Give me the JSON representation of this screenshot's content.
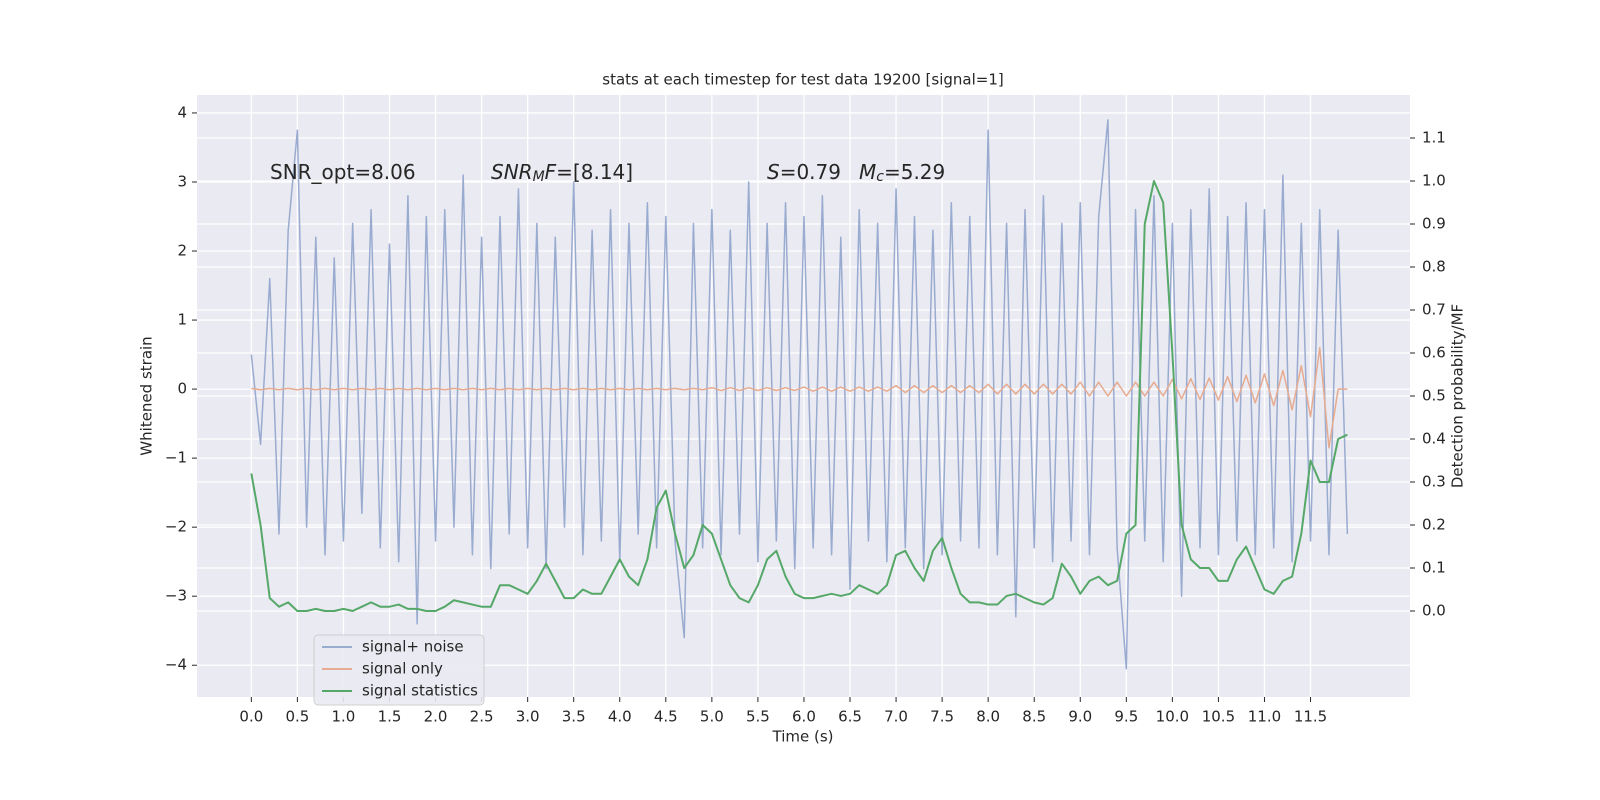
{
  "chart_data": {
    "type": "line",
    "title": "stats at each timestep for test data 19200 [signal=1]",
    "xlabel": "Time (s)",
    "ylabel": "Whitened strain",
    "y2label": "Detection probability/MF",
    "annotations": [
      [
        {
          "text": "SNR_opt=8.06"
        }
      ],
      [
        {
          "text": "SNR",
          "italic": true
        },
        {
          "text": "M",
          "italic": true,
          "sub": true
        },
        {
          "text": "F",
          "italic": true
        },
        {
          "text": "=[8.14]"
        }
      ],
      [
        {
          "text": "S",
          "italic": true
        },
        {
          "text": "=0.79"
        }
      ],
      [
        {
          "text": "M",
          "italic": true
        },
        {
          "text": "c",
          "italic": true,
          "sub": true
        },
        {
          "text": "=5.29"
        }
      ]
    ],
    "x": [
      0.0,
      0.1,
      0.2,
      0.3,
      0.4,
      0.5,
      0.6,
      0.7,
      0.8,
      0.9,
      1.0,
      1.1,
      1.2,
      1.3,
      1.4,
      1.5,
      1.6,
      1.7,
      1.8,
      1.9,
      2.0,
      2.1,
      2.2,
      2.3,
      2.4,
      2.5,
      2.6,
      2.7,
      2.8,
      2.9,
      3.0,
      3.1,
      3.2,
      3.3,
      3.4,
      3.5,
      3.6,
      3.7,
      3.8,
      3.9,
      4.0,
      4.1,
      4.2,
      4.3,
      4.4,
      4.5,
      4.6,
      4.7,
      4.8,
      4.9,
      5.0,
      5.1,
      5.2,
      5.3,
      5.4,
      5.5,
      5.6,
      5.7,
      5.8,
      5.9,
      6.0,
      6.1,
      6.2,
      6.3,
      6.4,
      6.5,
      6.6,
      6.7,
      6.8,
      6.9,
      7.0,
      7.1,
      7.2,
      7.3,
      7.4,
      7.5,
      7.6,
      7.7,
      7.8,
      7.9,
      8.0,
      8.1,
      8.2,
      8.3,
      8.4,
      8.5,
      8.6,
      8.7,
      8.8,
      8.9,
      9.0,
      9.1,
      9.2,
      9.3,
      9.4,
      9.5,
      9.6,
      9.7,
      9.8,
      9.9,
      10.0,
      10.1,
      10.2,
      10.3,
      10.4,
      10.5,
      10.6,
      10.7,
      10.8,
      10.9,
      11.0,
      11.1,
      11.2,
      11.3,
      11.4,
      11.5,
      11.6,
      11.7,
      11.8,
      11.9
    ],
    "series": [
      {
        "name": "signal+ noise",
        "color": "#9aabd0",
        "values": [
          0.5,
          -0.8,
          1.6,
          -2.1,
          2.3,
          3.75,
          -2.0,
          2.2,
          -2.4,
          1.9,
          -2.2,
          2.4,
          -1.8,
          2.6,
          -2.3,
          2.1,
          -2.5,
          2.8,
          -3.4,
          2.5,
          -2.2,
          2.6,
          -2.0,
          3.1,
          -2.4,
          2.2,
          -2.6,
          2.5,
          -2.1,
          2.9,
          -2.3,
          2.4,
          -2.6,
          2.2,
          -2.0,
          3.0,
          -2.4,
          2.3,
          -2.2,
          2.6,
          -2.5,
          2.4,
          -2.1,
          2.7,
          -2.3,
          2.5,
          -2.2,
          -3.6,
          2.4,
          -2.3,
          2.6,
          -2.4,
          2.3,
          -2.1,
          3.0,
          -2.5,
          2.4,
          -2.2,
          2.7,
          -2.6,
          2.5,
          -2.3,
          2.8,
          -2.4,
          2.2,
          -2.9,
          2.6,
          -2.2,
          2.4,
          -2.5,
          2.9,
          -2.3,
          2.5,
          -2.6,
          2.3,
          -2.4,
          2.7,
          -2.2,
          2.5,
          -2.3,
          3.75,
          -2.4,
          2.4,
          -3.3,
          2.6,
          -2.3,
          2.8,
          -2.5,
          2.4,
          -2.2,
          2.7,
          -2.4,
          2.5,
          3.9,
          -2.3,
          -4.05,
          2.6,
          -2.2,
          2.8,
          -2.5,
          2.4,
          -3.0,
          2.6,
          -2.3,
          2.9,
          -2.4,
          2.5,
          -2.2,
          2.7,
          -2.4,
          2.6,
          -2.3,
          3.1,
          -2.5,
          2.4,
          -2.2,
          2.6,
          -2.4,
          2.3,
          -2.1
        ]
      },
      {
        "name": "signal only",
        "color": "#e6ab90",
        "values": [
          0.01,
          -0.01,
          0.01,
          -0.01,
          0.01,
          -0.01,
          0.01,
          -0.01,
          0.01,
          -0.01,
          0.01,
          -0.01,
          0.01,
          -0.01,
          0.01,
          -0.01,
          0.01,
          -0.01,
          0.01,
          -0.01,
          0.01,
          -0.01,
          0.01,
          -0.01,
          0.01,
          -0.01,
          0.01,
          -0.01,
          0.01,
          -0.01,
          0.01,
          -0.01,
          0.01,
          -0.01,
          0.01,
          -0.01,
          0.01,
          -0.01,
          0.01,
          -0.01,
          0.01,
          -0.01,
          0.01,
          -0.01,
          0.01,
          -0.01,
          0.01,
          -0.01,
          0.01,
          -0.01,
          0.02,
          -0.02,
          0.02,
          -0.02,
          0.02,
          -0.02,
          0.02,
          -0.02,
          0.02,
          -0.02,
          0.03,
          -0.03,
          0.03,
          -0.03,
          0.03,
          -0.03,
          0.03,
          -0.03,
          0.03,
          -0.03,
          0.05,
          -0.05,
          0.05,
          -0.05,
          0.05,
          -0.05,
          0.05,
          -0.05,
          0.05,
          -0.05,
          0.07,
          -0.07,
          0.07,
          -0.07,
          0.07,
          -0.07,
          0.07,
          -0.07,
          0.07,
          -0.07,
          0.1,
          -0.1,
          0.1,
          -0.1,
          0.1,
          -0.1,
          0.1,
          -0.1,
          0.1,
          -0.1,
          0.14,
          -0.14,
          0.15,
          -0.15,
          0.16,
          -0.16,
          0.18,
          -0.18,
          0.2,
          -0.2,
          0.22,
          -0.24,
          0.27,
          -0.3,
          0.34,
          -0.4,
          0.6,
          -0.85,
          0,
          0
        ]
      },
      {
        "name": "signal statistics",
        "color": "#55a868",
        "axis": "y2",
        "values": [
          0.32,
          0.2,
          0.03,
          0.01,
          0.02,
          0.0,
          0.0,
          0.005,
          0.0,
          0.0,
          0.005,
          0.0,
          0.01,
          0.02,
          0.01,
          0.01,
          0.015,
          0.005,
          0.005,
          0.0,
          0.0,
          0.01,
          0.025,
          0.02,
          0.015,
          0.01,
          0.01,
          0.06,
          0.06,
          0.05,
          0.04,
          0.07,
          0.11,
          0.07,
          0.03,
          0.03,
          0.05,
          0.04,
          0.04,
          0.08,
          0.12,
          0.08,
          0.06,
          0.12,
          0.24,
          0.28,
          0.18,
          0.1,
          0.13,
          0.2,
          0.18,
          0.12,
          0.06,
          0.03,
          0.02,
          0.06,
          0.12,
          0.14,
          0.08,
          0.04,
          0.03,
          0.03,
          0.035,
          0.04,
          0.035,
          0.04,
          0.06,
          0.05,
          0.04,
          0.06,
          0.13,
          0.14,
          0.1,
          0.07,
          0.14,
          0.17,
          0.1,
          0.04,
          0.02,
          0.02,
          0.015,
          0.015,
          0.035,
          0.04,
          0.03,
          0.02,
          0.015,
          0.03,
          0.11,
          0.08,
          0.04,
          0.07,
          0.08,
          0.06,
          0.07,
          0.18,
          0.2,
          0.9,
          1.0,
          0.95,
          0.6,
          0.2,
          0.12,
          0.1,
          0.1,
          0.07,
          0.07,
          0.12,
          0.15,
          0.1,
          0.05,
          0.04,
          0.07,
          0.08,
          0.18,
          0.35,
          0.3,
          0.3,
          0.4,
          0.41
        ]
      }
    ],
    "xlim": [
      -0.59,
      12.58
    ],
    "xticks": [
      {
        "value": 0,
        "label": "0.0"
      },
      0.5,
      {
        "value": 1,
        "label": "1.0"
      },
      1.5,
      {
        "value": 2,
        "label": "2.0"
      },
      2.5,
      {
        "value": 3,
        "label": "3.0"
      },
      3.5,
      {
        "value": 4,
        "label": "4.0"
      },
      4.5,
      {
        "value": 5,
        "label": "5.0"
      },
      5.5,
      {
        "value": 6,
        "label": "6.0"
      },
      6.5,
      {
        "value": 7,
        "label": "7.0"
      },
      7.5,
      {
        "value": 8,
        "label": "8.0"
      },
      8.5,
      {
        "value": 9,
        "label": "9.0"
      },
      9.5,
      {
        "value": 10,
        "label": "10.0"
      },
      10.5,
      {
        "value": 11,
        "label": "11.0"
      },
      11.5
    ],
    "ylim": [
      -4.46,
      4.26
    ],
    "yticks": [
      {
        "value": -4,
        "label": "−4"
      },
      {
        "value": -3,
        "label": "−3"
      },
      {
        "value": -2,
        "label": "−2"
      },
      {
        "value": -1,
        "label": "−1"
      },
      0,
      1,
      2,
      3,
      4
    ],
    "y2lim": [
      -0.2,
      1.2
    ],
    "y2ticks": [
      {
        "value": 0,
        "label": "0.0"
      },
      0.1,
      0.2,
      0.3,
      0.4,
      0.5,
      0.6,
      0.7,
      0.8,
      0.9,
      {
        "value": 1,
        "label": "1.0"
      },
      1.1
    ],
    "grid": true,
    "legend": "lower left"
  }
}
